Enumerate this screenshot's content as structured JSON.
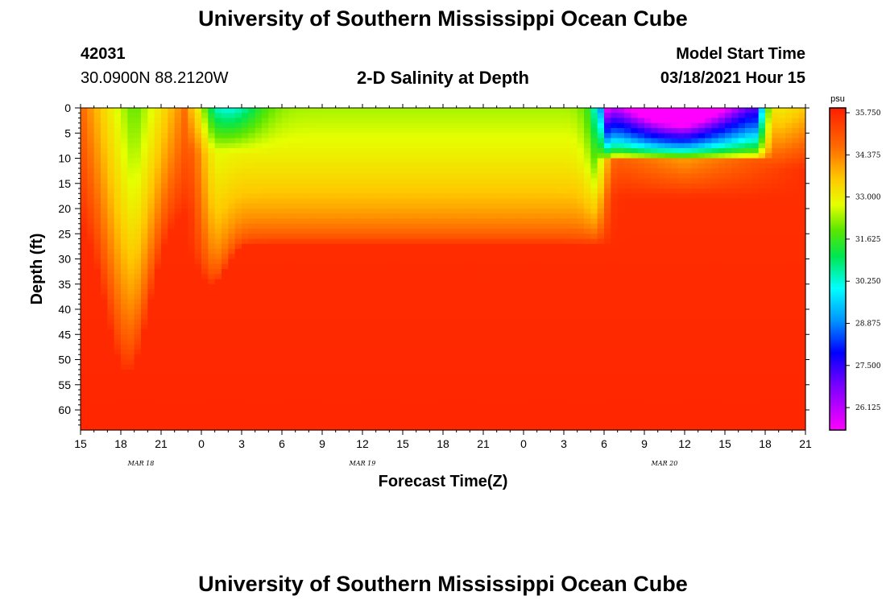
{
  "page": {
    "top_title": "University of Southern Mississippi Ocean Cube",
    "bottom_title": "University of Southern Mississippi Ocean Cube",
    "station_id": "42031",
    "station_coords": "30.0900N 88.2120W",
    "model_start_label": "Model Start Time",
    "model_start_value": "03/18/2021 Hour 15"
  },
  "chart_data": {
    "type": "heatmap",
    "title": "2-D Salinity at Depth",
    "xlabel": "Forecast Time(Z)",
    "ylabel": "Depth (ft)",
    "x_range_hours": [
      0,
      54
    ],
    "ylim": [
      0,
      64
    ],
    "x_tick_labels": [
      "15",
      "18",
      "21",
      "0",
      "3",
      "6",
      "9",
      "12",
      "15",
      "18",
      "21",
      "0",
      "3",
      "6",
      "9",
      "12",
      "15",
      "18",
      "21"
    ],
    "date_labels": [
      {
        "text": "MAR 18",
        "hour": 4.5
      },
      {
        "text": "MAR 19",
        "hour": 21
      },
      {
        "text": "MAR 20",
        "hour": 43.5
      }
    ],
    "y_ticks": [
      0,
      5,
      10,
      15,
      20,
      25,
      30,
      35,
      40,
      45,
      50,
      55,
      60
    ],
    "colorbar": {
      "unit": "psu",
      "min": 25.4,
      "max": 36.0,
      "tick_labels": [
        "35.750",
        "34.375",
        "33.000",
        "31.625",
        "30.250",
        "28.875",
        "27.500",
        "26.125"
      ]
    },
    "features": [
      {
        "name": "fresh-tongue-mar19-early",
        "hours": [
          0,
          9
        ],
        "min_salinity": 32.0,
        "max_depth_ft": 45
      },
      {
        "name": "fresh-layer-mar19-day",
        "hours": [
          9,
          21
        ],
        "min_salinity": 29.8,
        "max_depth_ft": 12
      },
      {
        "name": "fresh-lens-mar20",
        "hours": [
          39,
          51
        ],
        "min_salinity": 25.6,
        "max_depth_ft": 9
      }
    ]
  }
}
